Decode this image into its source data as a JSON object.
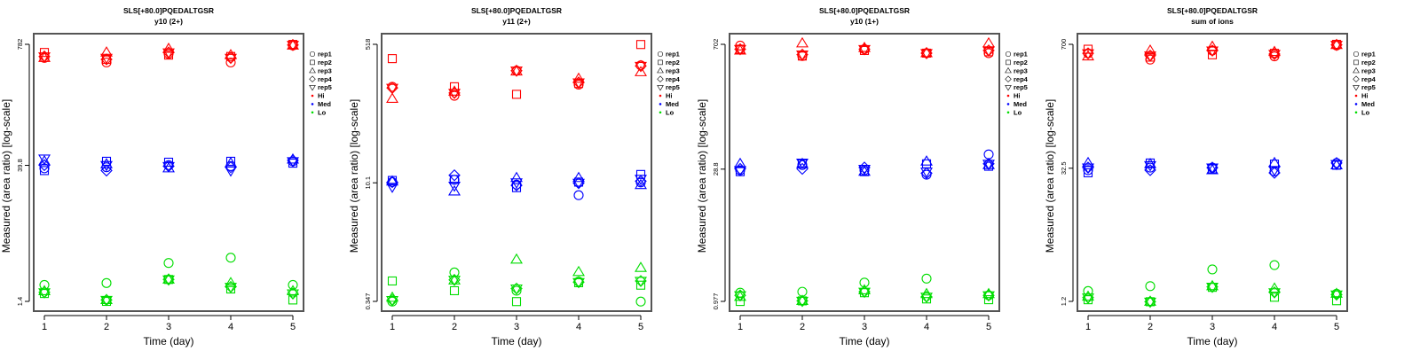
{
  "chart_data": [
    {
      "type": "scatter",
      "title": "SLS[+80.0]PQEDALTGSR",
      "subtitle": "y10 (2+)",
      "xlabel": "Time (day)",
      "ylabel": "Measured (area ratio) [log-scale]",
      "yscale": "log",
      "x_ticks": [
        "1",
        "2",
        "3",
        "4",
        "5"
      ],
      "y_ticks": [
        "1.4",
        "39.8",
        "782"
      ],
      "y_tick_values": [
        1.4,
        39.8,
        782
      ],
      "legend": {
        "placement": "right",
        "entries": [
          {
            "label": "rep1",
            "symbol": "circle"
          },
          {
            "label": "rep2",
            "symbol": "square"
          },
          {
            "label": "rep3",
            "symbol": "triangle-up"
          },
          {
            "label": "rep4",
            "symbol": "diamond"
          },
          {
            "label": "rep5",
            "symbol": "triangle-down"
          },
          {
            "label": "Hi",
            "symbol": "dot",
            "color": "#ff0000"
          },
          {
            "label": "Med",
            "symbol": "dot",
            "color": "#0000ff"
          },
          {
            "label": "Lo",
            "symbol": "dot",
            "color": "#00dd00"
          }
        ]
      },
      "series": [
        {
          "name": "Hi",
          "color": "#ff0000",
          "points": {
            "rep1": [
              560,
              500,
              620,
              500,
              760
            ],
            "rep2": [
              640,
              540,
              600,
              580,
              780
            ],
            "rep3": [
              560,
              640,
              700,
              600,
              760
            ],
            "rep4": [
              580,
              540,
              640,
              560,
              770
            ],
            "rep5": [
              580,
              560,
              640,
              560,
              770
            ]
          }
        },
        {
          "name": "Med",
          "color": "#0000ff",
          "points": {
            "rep1": [
              37,
              38,
              40,
              39,
              44
            ],
            "rep2": [
              35,
              44,
              43,
              44,
              42
            ],
            "rep3": [
              44,
              41,
              37,
              42,
              46
            ],
            "rep4": [
              40,
              35,
              39,
              38,
              45
            ],
            "rep5": [
              47,
              40,
              39,
              35,
              44
            ]
          }
        },
        {
          "name": "Lo",
          "color": "#00dd00",
          "points": {
            "rep1": [
              2.1,
              2.2,
              3.6,
              4.1,
              2.1
            ],
            "rep2": [
              1.7,
              1.4,
              2.4,
              1.9,
              1.45
            ],
            "rep3": [
              1.8,
              1.45,
              2.4,
              2.2,
              1.8
            ],
            "rep4": [
              1.75,
              1.45,
              2.4,
              2.0,
              1.7
            ],
            "rep5": [
              1.75,
              1.45,
              2.4,
              2.0,
              1.7
            ]
          }
        }
      ]
    },
    {
      "type": "scatter",
      "title": "SLS[+80.0]PQEDALTGSR",
      "subtitle": "y11 (2+)",
      "xlabel": "Time (day)",
      "ylabel": "Measured (area ratio) [log-scale]",
      "yscale": "log",
      "x_ticks": [
        "1",
        "2",
        "3",
        "4",
        "5"
      ],
      "y_ticks": [
        "0.347",
        "10.1",
        "518"
      ],
      "y_tick_values": [
        0.347,
        10.1,
        518
      ],
      "legend": {
        "placement": "right",
        "entries": [
          {
            "label": "rep1",
            "symbol": "circle"
          },
          {
            "label": "rep2",
            "symbol": "square"
          },
          {
            "label": "rep3",
            "symbol": "triangle-up"
          },
          {
            "label": "rep4",
            "symbol": "diamond"
          },
          {
            "label": "rep5",
            "symbol": "triangle-down"
          },
          {
            "label": "Hi",
            "symbol": "dot",
            "color": "#ff0000"
          },
          {
            "label": "Med",
            "symbol": "dot",
            "color": "#0000ff"
          },
          {
            "label": "Lo",
            "symbol": "dot",
            "color": "#00dd00"
          }
        ]
      },
      "series": [
        {
          "name": "Hi",
          "color": "#ff0000",
          "points": {
            "rep1": [
              155,
              120,
              245,
              165,
              285
            ],
            "rep2": [
              345,
              155,
              125,
              170,
              515
            ],
            "rep3": [
              110,
              135,
              240,
              195,
              235
            ],
            "rep4": [
              150,
              130,
              245,
              175,
              280
            ],
            "rep5": [
              150,
              130,
              245,
              175,
              280
            ]
          }
        },
        {
          "name": "Med",
          "color": "#0000ff",
          "points": {
            "rep1": [
              10.3,
              11.0,
              9.6,
              7.1,
              10.2
            ],
            "rep2": [
              10.8,
              11.1,
              8.8,
              10.3,
              12.8
            ],
            "rep3": [
              10.5,
              7.9,
              11.6,
              11.6,
              9.5
            ],
            "rep4": [
              10.3,
              12.5,
              9.4,
              10.0,
              10.6
            ],
            "rep5": [
              9.0,
              9.3,
              10.2,
              10.1,
              11.3
            ]
          }
        },
        {
          "name": "Lo",
          "color": "#00dd00",
          "points": {
            "rep1": [
              0.345,
              0.79,
              0.47,
              0.61,
              0.345
            ],
            "rep2": [
              0.62,
              0.47,
              0.345,
              0.59,
              0.55
            ],
            "rep3": [
              0.385,
              0.63,
              1.14,
              0.8,
              0.9
            ],
            "rep4": [
              0.36,
              0.64,
              0.5,
              0.6,
              0.62
            ],
            "rep5": [
              0.36,
              0.64,
              0.5,
              0.6,
              0.62
            ]
          }
        }
      ]
    },
    {
      "type": "scatter",
      "title": "SLS[+80.0]PQEDALTGSR",
      "subtitle": "y10 (1+)",
      "xlabel": "Time (day)",
      "ylabel": "Measured (area ratio) [log-scale]",
      "yscale": "log",
      "x_ticks": [
        "1",
        "2",
        "3",
        "4",
        "5"
      ],
      "y_ticks": [
        "0.977",
        "28.8",
        "702"
      ],
      "y_tick_values": [
        0.977,
        28.8,
        702
      ],
      "legend": {
        "placement": "right",
        "entries": [
          {
            "label": "rep1",
            "symbol": "circle"
          },
          {
            "label": "rep2",
            "symbol": "square"
          },
          {
            "label": "rep3",
            "symbol": "triangle-up"
          },
          {
            "label": "rep4",
            "symbol": "diamond"
          },
          {
            "label": "rep5",
            "symbol": "triangle-down"
          },
          {
            "label": "Hi",
            "symbol": "dot",
            "color": "#ff0000"
          },
          {
            "label": "Med",
            "symbol": "dot",
            "color": "#0000ff"
          },
          {
            "label": "Lo",
            "symbol": "dot",
            "color": "#00dd00"
          }
        ]
      },
      "series": [
        {
          "name": "Hi",
          "color": "#ff0000",
          "points": {
            "rep1": [
              680,
              520,
              620,
              560,
              560
            ],
            "rep2": [
              620,
              520,
              600,
              560,
              580
            ],
            "rep3": [
              600,
              720,
              640,
              560,
              720
            ],
            "rep4": [
              620,
              540,
              620,
              560,
              600
            ],
            "rep5": [
              620,
              540,
              620,
              560,
              600
            ]
          }
        },
        {
          "name": "Med",
          "color": "#0000ff",
          "points": {
            "rep1": [
              28,
              32,
              28,
              25,
              42
            ],
            "rep2": [
              27,
              33,
              27,
              33,
              31
            ],
            "rep3": [
              33,
              33,
              27,
              35,
              32
            ],
            "rep4": [
              29,
              29,
              30,
              26,
              33
            ],
            "rep5": [
              28,
              34,
              29,
              27,
              33
            ]
          }
        },
        {
          "name": "Lo",
          "color": "#00dd00",
          "points": {
            "rep1": [
              1.22,
              1.25,
              1.58,
              1.75,
              1.14
            ],
            "rep2": [
              0.975,
              0.99,
              1.22,
              1.04,
              1.02
            ],
            "rep3": [
              1.1,
              0.99,
              1.3,
              1.18,
              1.18
            ],
            "rep4": [
              1.14,
              0.99,
              1.25,
              1.1,
              1.14
            ],
            "rep5": [
              1.14,
              0.99,
              1.25,
              1.1,
              1.14
            ]
          }
        }
      ]
    },
    {
      "type": "scatter",
      "title": "SLS[+80.0]PQEDALTGSR",
      "subtitle": "sum of ions",
      "xlabel": "Time (day)",
      "ylabel": "Measured (area ratio) [log-scale]",
      "yscale": "log",
      "x_ticks": [
        "1",
        "2",
        "3",
        "4",
        "5"
      ],
      "y_ticks": [
        "1.2",
        "32.5",
        "700"
      ],
      "y_tick_values": [
        1.2,
        32.5,
        700
      ],
      "legend": {
        "placement": "right",
        "entries": [
          {
            "label": "rep1",
            "symbol": "circle"
          },
          {
            "label": "rep2",
            "symbol": "square"
          },
          {
            "label": "rep3",
            "symbol": "triangle-up"
          },
          {
            "label": "rep4",
            "symbol": "diamond"
          },
          {
            "label": "rep5",
            "symbol": "triangle-down"
          },
          {
            "label": "Hi",
            "symbol": "dot",
            "color": "#ff0000"
          },
          {
            "label": "Med",
            "symbol": "dot",
            "color": "#0000ff"
          },
          {
            "label": "Lo",
            "symbol": "dot",
            "color": "#00dd00"
          }
        ]
      },
      "series": [
        {
          "name": "Hi",
          "color": "#ff0000",
          "points": {
            "rep1": [
              560,
              480,
              600,
              520,
              680
            ],
            "rep2": [
              620,
              510,
              540,
              560,
              700
            ],
            "rep3": [
              520,
              600,
              660,
              580,
              690
            ],
            "rep4": [
              560,
              530,
              600,
              550,
              690
            ],
            "rep5": [
              560,
              530,
              600,
              550,
              690
            ]
          }
        },
        {
          "name": "Med",
          "color": "#0000ff",
          "points": {
            "rep1": [
              31,
              33,
              33,
              30,
              37
            ],
            "rep2": [
              29,
              37,
              32,
              36,
              35
            ],
            "rep3": [
              37,
              36,
              31,
              37,
              35
            ],
            "rep4": [
              33,
              31,
              33,
              29,
              37
            ],
            "rep5": [
              33,
              35,
              33,
              31,
              36
            ]
          }
        },
        {
          "name": "Lo",
          "color": "#00dd00",
          "points": {
            "rep1": [
              1.55,
              1.75,
              2.65,
              2.95,
              1.45
            ],
            "rep2": [
              1.25,
              1.19,
              1.7,
              1.33,
              1.22
            ],
            "rep3": [
              1.35,
              1.19,
              1.75,
              1.65,
              1.45
            ],
            "rep4": [
              1.32,
              1.19,
              1.72,
              1.5,
              1.42
            ],
            "rep5": [
              1.32,
              1.19,
              1.72,
              1.5,
              1.42
            ]
          }
        }
      ]
    }
  ]
}
